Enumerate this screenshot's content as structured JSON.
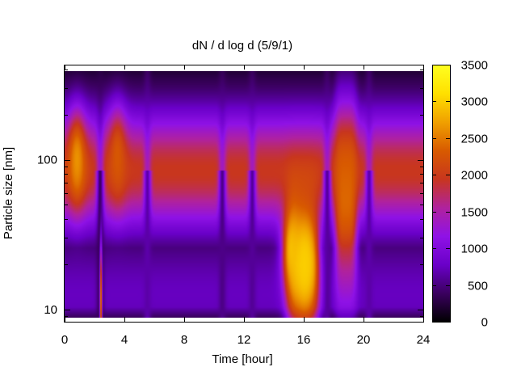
{
  "chart_data": {
    "type": "heatmap",
    "title": "dN / d log d (5/9/1)",
    "xlabel": "Time [hour]",
    "ylabel": "Particle size [nm]",
    "xlim": [
      0,
      24
    ],
    "ylim": [
      8.3,
      430
    ],
    "y_scale": "log",
    "x_ticks": [
      0,
      4,
      8,
      12,
      16,
      20,
      24
    ],
    "y_tick_labels": [
      {
        "value": 10,
        "label": "10"
      },
      {
        "value": 100,
        "label": "100"
      }
    ],
    "colorbar": {
      "min": 0,
      "max": 3500,
      "ticks": [
        0,
        500,
        1000,
        1500,
        2000,
        2500,
        3000,
        3500
      ],
      "palette": [
        "#000000",
        "#3a005e",
        "#6a00c8",
        "#8f12e6",
        "#b0229e",
        "#c8361e",
        "#d85a00",
        "#f0a000",
        "#ffe000",
        "#ffff20"
      ]
    },
    "base_profile": {
      "peak_diameter_nm": 85,
      "peak_value": 1950,
      "low_diameter_floor": 750,
      "top_value": 100
    },
    "features": [
      {
        "type": "dip",
        "time": 2.35,
        "value": 600
      },
      {
        "type": "spike",
        "time": 2.4,
        "diameter_nm": 12,
        "value": 2600
      },
      {
        "type": "dip",
        "time": 5.5,
        "value": 1100
      },
      {
        "type": "dip",
        "time": 10.5,
        "value": 900
      },
      {
        "type": "dip",
        "time": 12.5,
        "value": 1000
      },
      {
        "type": "dip",
        "time": 17.5,
        "value": 1000
      },
      {
        "type": "dip",
        "time": 20.3,
        "value": 1100
      },
      {
        "type": "burst",
        "time_range": [
          14.8,
          17.0
        ],
        "diameter_range_nm": [
          10,
          40
        ],
        "value": 2900
      },
      {
        "type": "burst",
        "time_range": [
          18.0,
          19.5
        ],
        "diameter_range_nm": [
          20,
          150
        ],
        "value": 2400
      }
    ],
    "hot_spots": [
      {
        "time": 0.8,
        "diameter_nm": 100,
        "value": 2650
      },
      {
        "time": 3.5,
        "diameter_nm": 105,
        "value": 2300
      },
      {
        "time": 15.1,
        "diameter_nm": 25,
        "value": 2900
      },
      {
        "time": 16.0,
        "diameter_nm": 20,
        "value": 3000
      }
    ]
  }
}
